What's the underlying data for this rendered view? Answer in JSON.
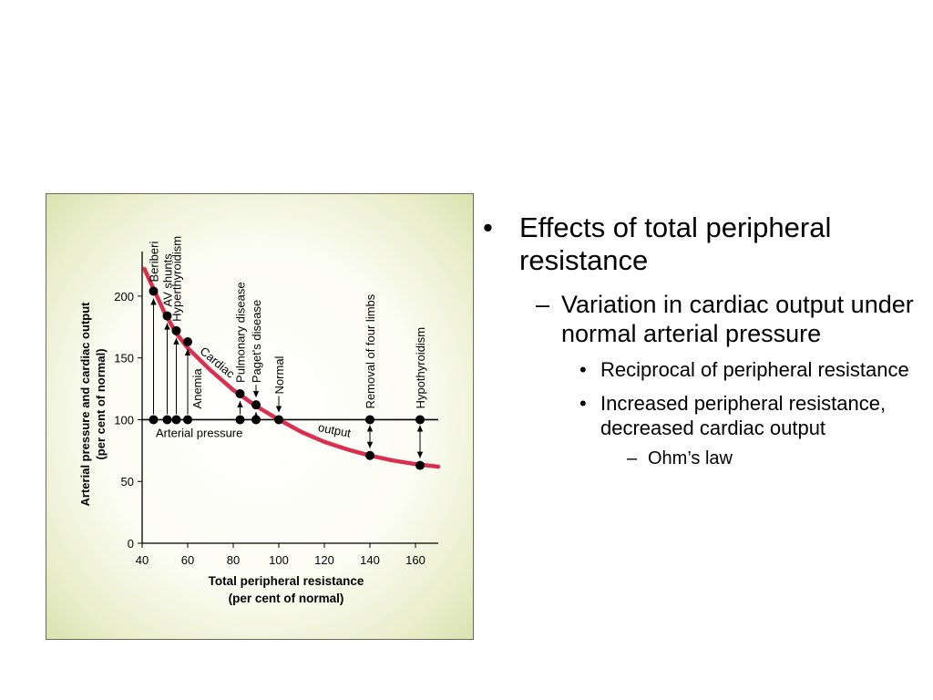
{
  "chart_data": {
    "type": "line",
    "xlabel_line1": "Total peripheral resistance",
    "xlabel_line2": "(per cent of normal)",
    "ylabel_line1": "Arterial pressure  and cardiac output",
    "ylabel_line2": "(per cent of normal)",
    "xlim": [
      40,
      170
    ],
    "ylim": [
      0,
      225
    ],
    "x_ticks": [
      40,
      60,
      80,
      100,
      120,
      140,
      160
    ],
    "y_ticks": [
      0,
      50,
      100,
      150,
      200
    ],
    "series": [
      {
        "name": "Cardiac output",
        "label_words": [
          "Cardiac",
          "output"
        ],
        "color": "#d9304f",
        "x": [
          41,
          45,
          50,
          55,
          60,
          70,
          80,
          90,
          100,
          110,
          120,
          130,
          140,
          150,
          160,
          170
        ],
        "y": [
          222,
          206,
          186,
          170,
          158,
          140,
          124,
          111,
          100,
          90,
          82,
          76,
          71,
          67,
          64,
          62
        ]
      },
      {
        "name": "Arterial pressure",
        "label": "Arterial pressure",
        "color": "#000000",
        "x": [
          40,
          170
        ],
        "y": [
          100,
          100
        ]
      }
    ],
    "conditions": [
      {
        "label": "Beriberi",
        "x": 45,
        "y": 204
      },
      {
        "label": "AV shunts",
        "x": 51,
        "y": 184
      },
      {
        "label": "Hyperthyroidism",
        "x": 55,
        "y": 172
      },
      {
        "label": "Anemia",
        "x": 60,
        "y": 163
      },
      {
        "label": "Pulmonary disease",
        "x": 83,
        "y": 121
      },
      {
        "label": "Paget's disease",
        "x": 90,
        "y": 112
      },
      {
        "label": "Normal",
        "x": 100,
        "y": 100
      },
      {
        "label": "Removal of four limbs",
        "x": 140,
        "y": 71
      },
      {
        "label": "Hypothyroidism",
        "x": 162,
        "y": 63
      }
    ]
  },
  "bullets": {
    "l1": "Effects of total peripheral resistance",
    "l2": "Variation in cardiac output under normal arterial pressure",
    "l3a": "Reciprocal of peripheral resistance",
    "l3b": "Increased peripheral resistance, decreased cardiac output",
    "l4": "Ohm’s law"
  },
  "glyphs": {
    "dot": "•",
    "dash": "–"
  }
}
